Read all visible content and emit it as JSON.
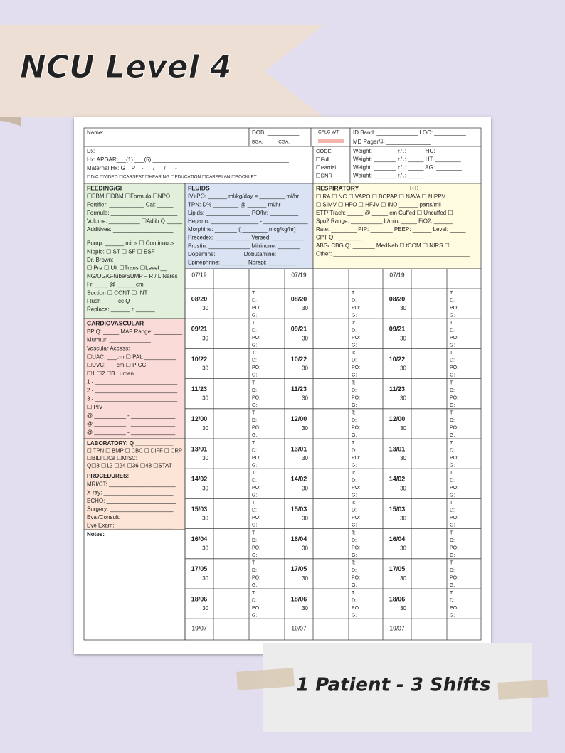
{
  "banner_title": "NCU Level 4",
  "caption": "1 Patient - 3 Shifts",
  "header": {
    "name": "Name:",
    "dob": "DOB: __________",
    "bga": "BGA: _____ CGA: _____",
    "calc_wt": "CALC WT:",
    "id_band": "ID Band: _____________ LOC: __________",
    "md_pager": "MD Pager/#: ______________"
  },
  "dx": [
    "Dx: ________________________________________________________________",
    "Hx: APGAR___(1) ___(5) ___________________________________________",
    "Maternal Hx: G__P__-___/___/___-  _________________________________",
    "☐D/C ☐VIDEO ☐CARSEAT ☐HEARING ☐EDUCATION ☐CAREPLAN ☐BOOKLET"
  ],
  "code": [
    "CODE:",
    "☐Full",
    "☐Partial",
    "☐DNR"
  ],
  "weight": [
    "Weight: _______ ↑/↓: _____ HC: ________",
    "Weight: _______ ↑/↓: _____ HT: ________",
    "Weight: _______ ↑/↓: _____ AG: ________",
    "Weight: _______ ↑/↓: _____"
  ],
  "feeding": [
    "FEEDING/GI",
    "☐EBM ☐DBM ☐Formula ☐NPO",
    "Fortifier: ___________ Cal: _____",
    "Formula: _____________________",
    "Volume: __________ ☐Adlib Q _____",
    "Additives: ___________________",
    "Pump: ______ mins ☐ Continuous",
    "Nipple: ☐ ST ☐ SF ☐ ESF",
    "Dr. Brown:",
    "☐ Pre ☐ Ult ☐Trans ☐Level __",
    "NG/OG/G-tube/SUMP – R / L Nares",
    "Fr: ____ @ ______cm",
    "Suction ☐ CONT ☐ INT",
    "Flush _____cc Q _____",
    "Replace: ______ ↑ ______"
  ],
  "fluids": [
    "FLUIDS",
    "IV+PO: ______ ml/kg/day = ________ ml/hr",
    "TPN: D% ________ @ ______ ml/hr",
    "Lipids: ______________ PO/hr: _________",
    "Heparin: _______________ - ______________",
    "Morphine: _______ ( ________ mcg/kg/hr)",
    "Precedex: ___________ Versed: __________",
    "Prostin: _____________ Milrinone: _______",
    "Dopamine: ________ Dobutamine: _______",
    "Epinephrine: ________ Norepi: _________"
  ],
  "respiratory": {
    "title": "RESPIRATORY",
    "rt": "RT: _______________",
    "lines": [
      "☐ RA ☐ NC ☐ VAPO ☐ BCPAP ☐ NAVA ☐ NIPPV",
      "☐ SIMV ☐ HFO ☐ HFJV ☐ iNO ______ parts/mil",
      "ETT/ Trach: _____ @ _____ cm Cuffed ☐  Uncuffed ☐",
      "Spo2 Range: __________ L/min: _____ FiO2: ______",
      "Rate: ________ PIP: _______ PEEP: ______ Level: _____",
      "CPT Q: ________",
      "ABG/ CBG Q: _______  MedNeb ☐  tCOM ☐  NIRS ☐",
      "Other: ___________________________________________",
      "__________________________________________________"
    ]
  },
  "cardiovascular": [
    "CARDIOVASCULAR",
    "BP Q: _____ MAP Range: _________",
    "Murmur: _____________",
    "Vascular Access:",
    "☐UAC: ___cm ☐ PAL __________",
    "☐UVC: ___cm ☐ PICC __________",
    "☐1 ☐2 ☐3 Lumen",
    "1 - __________________________",
    "2 - __________________________",
    "3 - __________________________",
    "☐ PIV",
    "@ __________ - ______________",
    "@ __________ - ______________",
    "@ __________ - ______________"
  ],
  "laboratory": [
    "LABORATORY: Q ____________",
    "☐ TPN ☐ BMP ☐ CBC ☐ DIFF ☐ CRP",
    "☐BILI ☐Ca ☐MISC: ______________",
    "Q☐8 ☐12 ☐24 ☐36 ☐48 ☐STAT"
  ],
  "procedures": [
    "PROCEDURES:",
    "MRI/CT: _____________________",
    "X-ray: ______________________",
    "ECHO: ______________________",
    "Surgery: ____________________",
    "Eval/Consult: ________________",
    "Eye Exam: __________________"
  ],
  "notes": "Notes:",
  "time_grid": {
    "start": "07/19",
    "end": "19/07",
    "labels": [
      "T:",
      "D:",
      "PO:",
      "G:"
    ],
    "rows": [
      {
        "time": "08/20",
        "sub": "30"
      },
      {
        "time": "09/21",
        "sub": "30"
      },
      {
        "time": "10/22",
        "sub": "30"
      },
      {
        "time": "11/23",
        "sub": "30"
      },
      {
        "time": "12/00",
        "sub": "30"
      },
      {
        "time": "13/01",
        "sub": "30"
      },
      {
        "time": "14/02",
        "sub": "30"
      },
      {
        "time": "15/03",
        "sub": "30"
      },
      {
        "time": "16/04",
        "sub": "30"
      },
      {
        "time": "17/05",
        "sub": "30"
      },
      {
        "time": "18/06",
        "sub": "30"
      }
    ]
  }
}
